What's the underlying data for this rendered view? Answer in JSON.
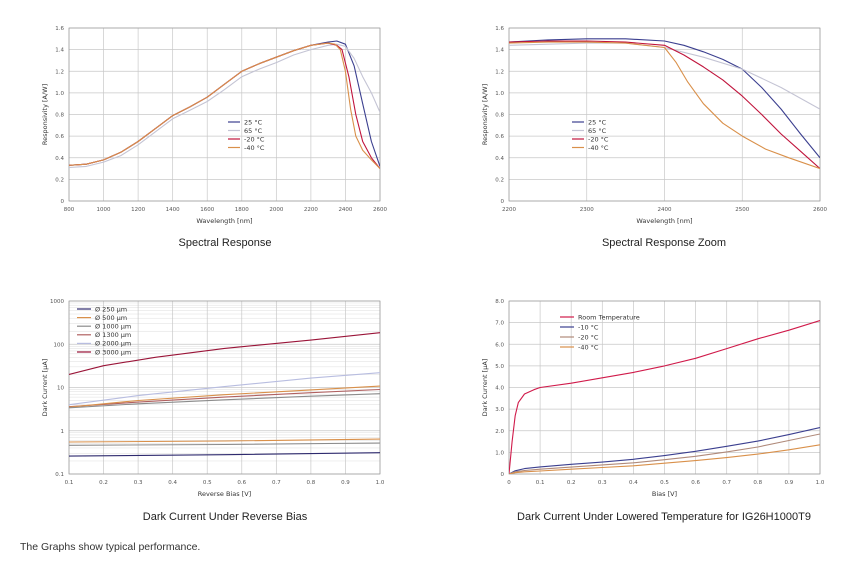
{
  "footer": "The Graphs show typical performance.",
  "colors": {
    "grid": "#c8c8c8",
    "axis": "#999999"
  },
  "chart_data": [
    {
      "type": "line",
      "title": "Spectral Response",
      "xlabel": "Wavelength [nm]",
      "ylabel": "Responsivity [A/W]",
      "xlim": [
        800,
        2600
      ],
      "ylim": [
        0,
        1.6
      ],
      "xticks": [
        800,
        1000,
        1200,
        1400,
        1600,
        1800,
        2000,
        2200,
        2400,
        2600
      ],
      "yticks": [
        0,
        0.2,
        0.4,
        0.6,
        0.8,
        1.0,
        1.2,
        1.4,
        1.6
      ],
      "xticklabels": [
        "800",
        "1000",
        "1200",
        "1400",
        "1600",
        "1800",
        "2000",
        "2200",
        "2400",
        "2600"
      ],
      "yticklabels": [
        "0",
        "0.2",
        "0.4",
        "0.6",
        "0.8",
        "1.0",
        "1.2",
        "1.4",
        "1.6"
      ],
      "legend": "center",
      "series": [
        {
          "name": "25 °C",
          "color": "#3b3f8f",
          "x": [
            800,
            900,
            1000,
            1100,
            1200,
            1300,
            1400,
            1500,
            1600,
            1700,
            1800,
            1900,
            2000,
            2100,
            2200,
            2300,
            2350,
            2400,
            2450,
            2500,
            2550,
            2600
          ],
          "y": [
            0.33,
            0.34,
            0.38,
            0.45,
            0.55,
            0.67,
            0.79,
            0.87,
            0.96,
            1.08,
            1.2,
            1.27,
            1.33,
            1.39,
            1.44,
            1.47,
            1.48,
            1.45,
            1.25,
            0.9,
            0.55,
            0.32
          ]
        },
        {
          "name": "65 °C",
          "color": "#c4c4d4",
          "x": [
            800,
            900,
            1000,
            1100,
            1200,
            1300,
            1400,
            1500,
            1600,
            1700,
            1800,
            1900,
            2000,
            2100,
            2200,
            2300,
            2350,
            2400,
            2450,
            2500,
            2550,
            2600
          ],
          "y": [
            0.31,
            0.32,
            0.36,
            0.42,
            0.52,
            0.64,
            0.76,
            0.84,
            0.92,
            1.03,
            1.15,
            1.22,
            1.28,
            1.35,
            1.4,
            1.44,
            1.45,
            1.43,
            1.32,
            1.15,
            1.0,
            0.82
          ]
        },
        {
          "name": "-20 °C",
          "color": "#c0143c",
          "x": [
            800,
            900,
            1000,
            1100,
            1200,
            1300,
            1400,
            1500,
            1600,
            1700,
            1800,
            1900,
            2000,
            2100,
            2200,
            2300,
            2350,
            2380,
            2420,
            2460,
            2500,
            2550,
            2600
          ],
          "y": [
            0.33,
            0.34,
            0.38,
            0.45,
            0.55,
            0.67,
            0.79,
            0.87,
            0.96,
            1.08,
            1.2,
            1.27,
            1.33,
            1.39,
            1.44,
            1.46,
            1.44,
            1.4,
            1.15,
            0.8,
            0.55,
            0.4,
            0.3
          ]
        },
        {
          "name": "-40 °C",
          "color": "#d9904a",
          "x": [
            800,
            900,
            1000,
            1100,
            1200,
            1300,
            1400,
            1500,
            1600,
            1700,
            1800,
            1900,
            2000,
            2100,
            2200,
            2300,
            2340,
            2370,
            2400,
            2430,
            2460,
            2500,
            2550,
            2600
          ],
          "y": [
            0.33,
            0.34,
            0.38,
            0.45,
            0.55,
            0.67,
            0.79,
            0.87,
            0.96,
            1.08,
            1.2,
            1.27,
            1.33,
            1.39,
            1.44,
            1.46,
            1.45,
            1.4,
            1.2,
            0.85,
            0.6,
            0.47,
            0.38,
            0.3
          ]
        }
      ]
    },
    {
      "type": "line",
      "title": "Spectral Response Zoom",
      "xlabel": "Wavelength [nm]",
      "ylabel": "Responsivity [A/W]",
      "xlim": [
        2200,
        2600
      ],
      "ylim": [
        0,
        1.6
      ],
      "xticks": [
        2200,
        2300,
        2400,
        2500,
        2600
      ],
      "yticks": [
        0,
        0.2,
        0.4,
        0.6,
        0.8,
        1.0,
        1.2,
        1.4,
        1.6
      ],
      "xticklabels": [
        "2200",
        "2300",
        "2400",
        "2500",
        "2600"
      ],
      "yticklabels": [
        "0",
        "0.2",
        "0.4",
        "0.6",
        "0.8",
        "1.0",
        "1.2",
        "1.4",
        "1.6"
      ],
      "legend": "center-left",
      "series": [
        {
          "name": "25 °C",
          "color": "#3b3f8f",
          "x": [
            2200,
            2250,
            2300,
            2350,
            2400,
            2425,
            2450,
            2475,
            2500,
            2525,
            2550,
            2575,
            2600
          ],
          "y": [
            1.47,
            1.49,
            1.5,
            1.5,
            1.48,
            1.44,
            1.38,
            1.31,
            1.22,
            1.05,
            0.85,
            0.62,
            0.4
          ]
        },
        {
          "name": "65 °C",
          "color": "#c4c4d4",
          "x": [
            2200,
            2250,
            2300,
            2350,
            2400,
            2450,
            2500,
            2550,
            2600
          ],
          "y": [
            1.44,
            1.45,
            1.46,
            1.46,
            1.42,
            1.33,
            1.22,
            1.05,
            0.85
          ]
        },
        {
          "name": "-20 °C",
          "color": "#c0143c",
          "x": [
            2200,
            2250,
            2300,
            2350,
            2400,
            2425,
            2450,
            2475,
            2500,
            2525,
            2550,
            2575,
            2600
          ],
          "y": [
            1.47,
            1.48,
            1.48,
            1.47,
            1.44,
            1.35,
            1.24,
            1.12,
            0.97,
            0.8,
            0.62,
            0.46,
            0.3
          ]
        },
        {
          "name": "-40 °C",
          "color": "#d9904a",
          "x": [
            2200,
            2250,
            2300,
            2350,
            2400,
            2415,
            2430,
            2450,
            2475,
            2500,
            2530,
            2560,
            2600
          ],
          "y": [
            1.46,
            1.47,
            1.47,
            1.46,
            1.42,
            1.28,
            1.1,
            0.9,
            0.72,
            0.6,
            0.48,
            0.4,
            0.3
          ]
        }
      ]
    },
    {
      "type": "line",
      "title": "Dark Current Under Reverse Bias",
      "xlabel": "Reverse Bias [V]",
      "ylabel": "Dark Current [μA]",
      "yscale": "log",
      "xlim": [
        0.1,
        1.0
      ],
      "ylim": [
        0.1,
        1000
      ],
      "xticks": [
        0.1,
        0.2,
        0.3,
        0.4,
        0.5,
        0.6,
        0.7,
        0.8,
        0.9,
        1.0
      ],
      "yticks": [
        0.1,
        1,
        10,
        100,
        1000
      ],
      "xticklabels": [
        "0.1",
        "0.2",
        "0.3",
        "0.4",
        "0.5",
        "0.6",
        "0.7",
        "0.8",
        "0.9",
        "1.0"
      ],
      "yticklabels": [
        "0.1",
        "1",
        "10",
        "100",
        "1000"
      ],
      "legend": "top-left",
      "series": [
        {
          "name": "Ø  250 μm",
          "color": "#2e2a6e",
          "x": [
            0.1,
            0.55,
            1.0
          ],
          "y": [
            0.26,
            0.28,
            0.31
          ]
        },
        {
          "name": "Ø  500 μm",
          "color": "#d9904a",
          "x": [
            0.1,
            0.55,
            1.0
          ],
          "y": [
            0.55,
            0.58,
            0.64
          ]
        },
        {
          "name": "Ø 1000 μm",
          "color": "#8c8c8c",
          "x": [
            0.1,
            0.55,
            1.0
          ],
          "y": [
            0.46,
            0.48,
            0.52
          ]
        },
        {
          "name": "Ø 1300 μm",
          "color": "#b06060",
          "x": [
            0.1,
            0.3,
            0.55,
            0.8,
            1.0
          ],
          "y": [
            3.6,
            4.6,
            6.0,
            7.6,
            9.0
          ]
        },
        {
          "name": "Ø 2000 μm",
          "color": "#b8bde0",
          "x": [
            0.1,
            0.3,
            0.55,
            0.8,
            1.0
          ],
          "y": [
            4.0,
            6.5,
            10.5,
            16.5,
            22.0
          ]
        },
        {
          "name": "Ø 3000 μm",
          "color": "#9a1438",
          "x": [
            0.1,
            0.2,
            0.35,
            0.55,
            0.8,
            1.0
          ],
          "y": [
            20,
            32,
            50,
            80,
            125,
            185
          ]
        },
        {
          "name": "",
          "color": "#d9904a",
          "x": [
            0.1,
            0.3,
            0.55,
            0.8,
            1.0
          ],
          "y": [
            3.5,
            5.0,
            6.8,
            8.8,
            10.8
          ]
        },
        {
          "name": "",
          "color": "#8c8c8c",
          "x": [
            0.1,
            0.3,
            0.55,
            0.8,
            1.0
          ],
          "y": [
            3.4,
            4.2,
            5.2,
            6.3,
            7.2
          ]
        }
      ]
    },
    {
      "type": "line",
      "title": "Dark Current Under Lowered Temperature for IG26H1000T9",
      "xlabel": "Bias [V]",
      "ylabel": "Dark Current [μA]",
      "xlim": [
        0,
        1.0
      ],
      "ylim": [
        0,
        8.0
      ],
      "xticks": [
        0,
        0.1,
        0.2,
        0.3,
        0.4,
        0.5,
        0.6,
        0.7,
        0.8,
        0.9,
        1.0
      ],
      "yticks": [
        0,
        1.0,
        2.0,
        3.0,
        4.0,
        5.0,
        6.0,
        7.0,
        8.0
      ],
      "xticklabels": [
        "0",
        "0.1",
        "0.2",
        "0.3",
        "0.4",
        "0.5",
        "0.6",
        "0.7",
        "0.8",
        "0.9",
        "1.0"
      ],
      "yticklabels": [
        "0",
        "1.0",
        "2.0",
        "3.0",
        "4.0",
        "5.0",
        "6.0",
        "7.0",
        "8.0"
      ],
      "legend": "top-left",
      "series": [
        {
          "name": "Room Temperature",
          "color": "#d01a4a",
          "x": [
            0,
            0.01,
            0.02,
            0.03,
            0.05,
            0.08,
            0.1,
            0.2,
            0.3,
            0.4,
            0.5,
            0.6,
            0.7,
            0.8,
            0.9,
            1.0
          ],
          "y": [
            0,
            1.5,
            2.7,
            3.3,
            3.7,
            3.9,
            4.0,
            4.2,
            4.45,
            4.7,
            5.0,
            5.35,
            5.8,
            6.25,
            6.65,
            7.1
          ]
        },
        {
          "name": "-10 °C",
          "color": "#3b3f8f",
          "x": [
            0,
            0.02,
            0.05,
            0.1,
            0.2,
            0.3,
            0.4,
            0.5,
            0.6,
            0.7,
            0.8,
            0.9,
            1.0
          ],
          "y": [
            0,
            0.15,
            0.25,
            0.33,
            0.45,
            0.55,
            0.68,
            0.85,
            1.05,
            1.28,
            1.52,
            1.82,
            2.15
          ]
        },
        {
          "name": "-20 °C",
          "color": "#b08a7a",
          "x": [
            0,
            0.02,
            0.05,
            0.1,
            0.2,
            0.3,
            0.4,
            0.5,
            0.6,
            0.7,
            0.8,
            0.9,
            1.0
          ],
          "y": [
            0,
            0.1,
            0.16,
            0.22,
            0.32,
            0.42,
            0.52,
            0.66,
            0.82,
            1.02,
            1.25,
            1.55,
            1.85
          ]
        },
        {
          "name": "-40 °C",
          "color": "#d9904a",
          "x": [
            0,
            0.02,
            0.05,
            0.1,
            0.2,
            0.3,
            0.4,
            0.5,
            0.6,
            0.7,
            0.8,
            0.9,
            1.0
          ],
          "y": [
            0,
            0.06,
            0.1,
            0.14,
            0.22,
            0.3,
            0.38,
            0.5,
            0.62,
            0.76,
            0.92,
            1.12,
            1.35
          ]
        }
      ]
    }
  ]
}
